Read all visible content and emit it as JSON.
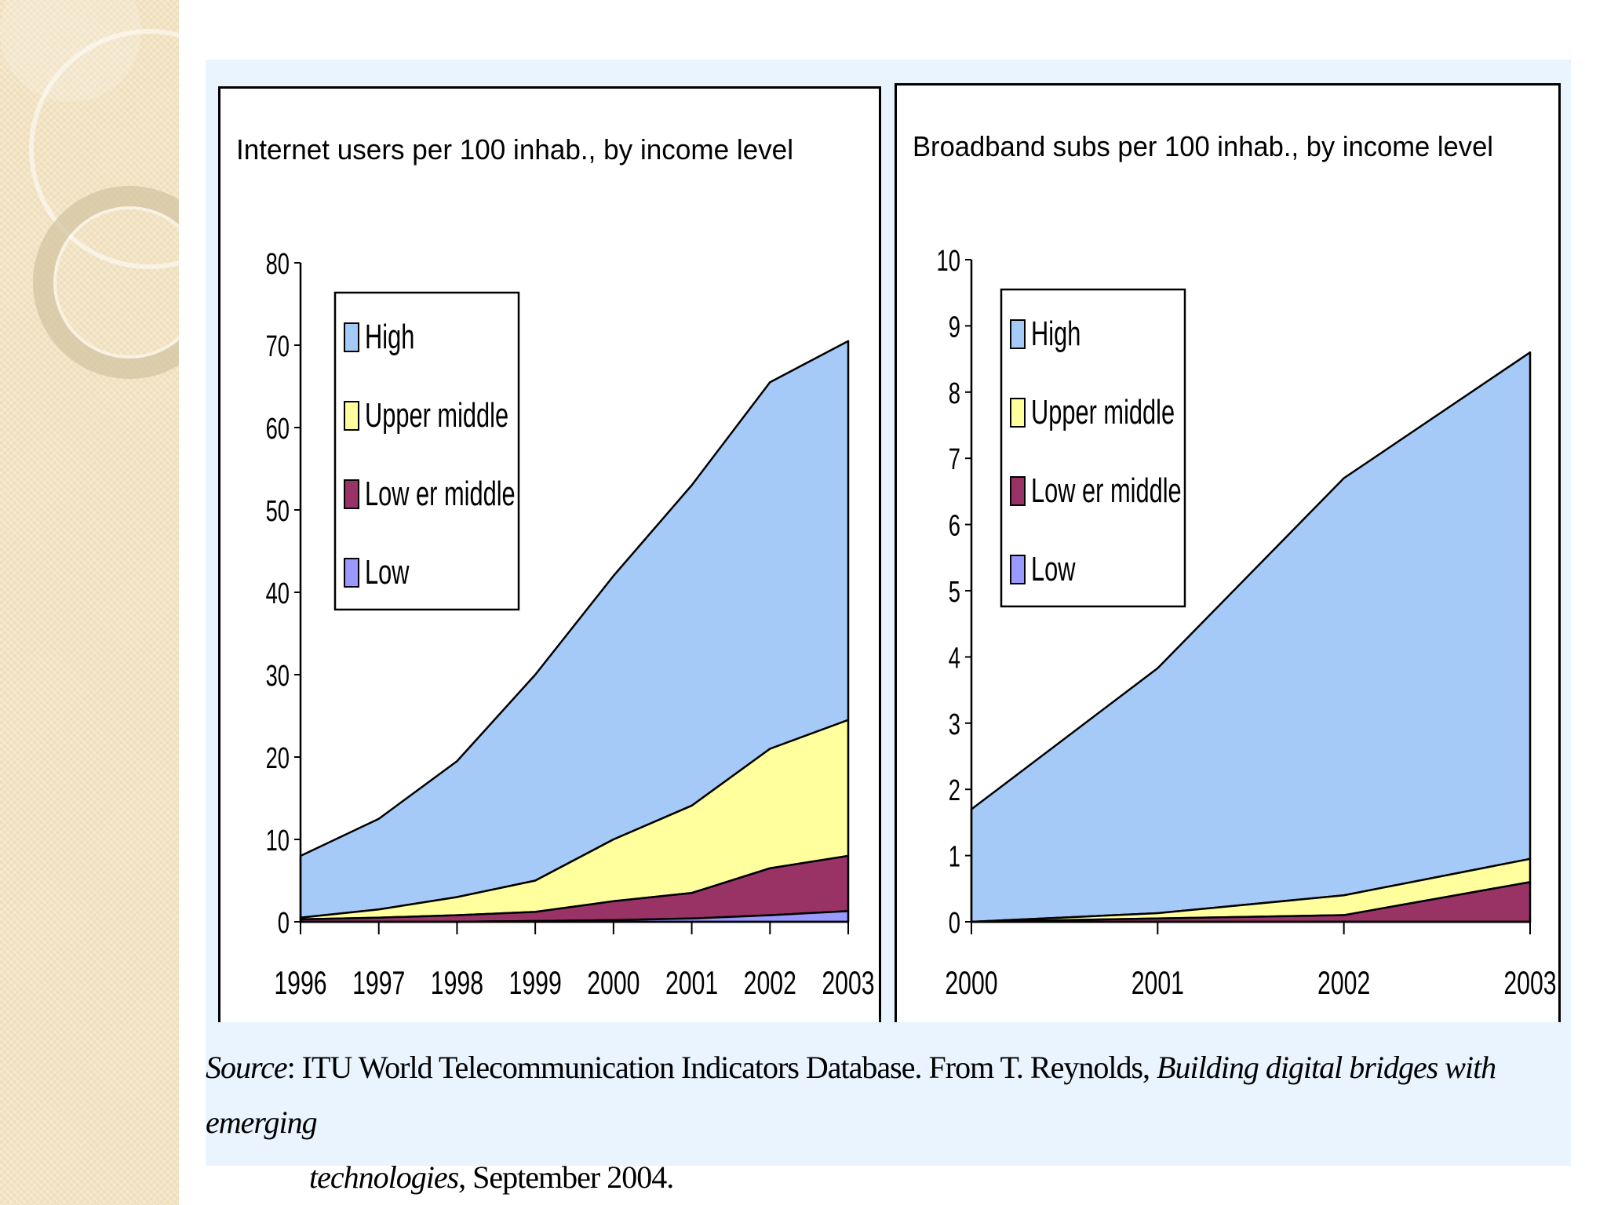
{
  "colors": {
    "high": "#a6caf7",
    "upper_middle": "#ffff9e",
    "lower_middle": "#993366",
    "low": "#9999ff",
    "frame_bg": "#e9f4fe"
  },
  "chart_data": [
    {
      "type": "area",
      "stacked": true,
      "title": "Internet users per 100 inhab., by income level",
      "categories": [
        "1996",
        "1997",
        "1998",
        "1999",
        "2000",
        "2001",
        "2002",
        "2003"
      ],
      "ylim": [
        0,
        80
      ],
      "yticks": [
        "0",
        "10",
        "20",
        "30",
        "40",
        "50",
        "60",
        "70",
        "80"
      ],
      "legend_position": "top-left",
      "series": [
        {
          "name": "Low",
          "color_key": "low",
          "values": [
            0,
            0,
            0,
            0.1,
            0.2,
            0.4,
            0.8,
            1.3
          ]
        },
        {
          "name": "Low er middle",
          "color_key": "lower_middle",
          "values": [
            0.3,
            0.5,
            0.8,
            1.1,
            2.3,
            3.1,
            5.7,
            6.7
          ]
        },
        {
          "name": "Upper middle",
          "color_key": "upper_middle",
          "values": [
            0.2,
            1.0,
            2.2,
            3.8,
            7.5,
            10.6,
            14.5,
            16.5
          ]
        },
        {
          "name": "High",
          "color_key": "high",
          "values": [
            7.5,
            11.0,
            16.5,
            25.0,
            32.0,
            38.9,
            44.5,
            46.0
          ]
        }
      ]
    },
    {
      "type": "area",
      "stacked": true,
      "title": "Broadband subs per 100 inhab., by income level",
      "categories": [
        "2000",
        "2001",
        "2002",
        "2003"
      ],
      "ylim": [
        0,
        10
      ],
      "yticks": [
        "0",
        "1",
        "2",
        "3",
        "4",
        "5",
        "6",
        "7",
        "8",
        "9",
        "10"
      ],
      "legend_position": "top-left",
      "series": [
        {
          "name": "Low",
          "color_key": "low",
          "values": [
            0,
            0,
            0,
            0
          ]
        },
        {
          "name": "Low er middle",
          "color_key": "lower_middle",
          "values": [
            0,
            0.05,
            0.1,
            0.6
          ]
        },
        {
          "name": "Upper middle",
          "color_key": "upper_middle",
          "values": [
            0,
            0.08,
            0.3,
            0.35
          ]
        },
        {
          "name": "High",
          "color_key": "high",
          "values": [
            1.7,
            3.7,
            6.3,
            7.65
          ]
        }
      ]
    }
  ],
  "source": {
    "label": "Source",
    "text_before": ": ITU World Telecommunication Indicators Database. From T. Reynolds, ",
    "title_part1": "Building digital bridges with emerging",
    "title_part2": "technologies",
    "text_after": ", September 2004."
  }
}
